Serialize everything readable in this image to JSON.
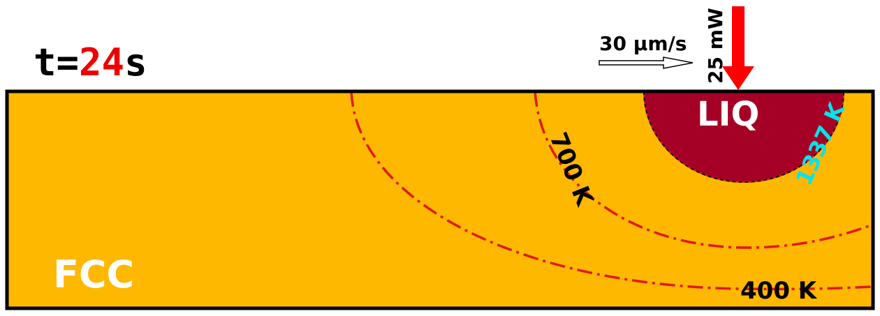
{
  "time": {
    "prefix": "t=",
    "value": "24",
    "unit": "s"
  },
  "velocity": {
    "label": "30 µm/s"
  },
  "laser": {
    "power_label": "25 mW",
    "color": "#ff0000"
  },
  "phases": {
    "liquid": "LIQ",
    "solid": "FCC"
  },
  "isotherms": {
    "melting": "1337 K",
    "mid": "700 K",
    "low": "400 K"
  },
  "colors": {
    "substrate": "#FFB800",
    "melt_pool": "#A50026",
    "isotherm_line": "#E0191E",
    "melting_label": "#00E5EE",
    "time_value": "#ee0000"
  }
}
